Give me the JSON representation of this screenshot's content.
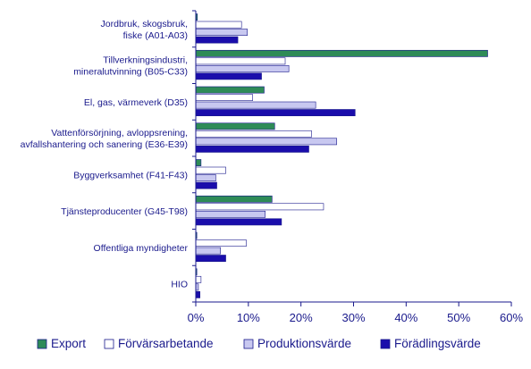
{
  "chart_data": {
    "type": "bar",
    "orientation": "horizontal",
    "categories": [
      [
        "Jordbruk, skogsbruk,",
        "fiske (A01-A03)"
      ],
      [
        "Tillverkningsindustri,",
        "mineralutvinning (B05-C33)"
      ],
      [
        "El, gas, värmeverk (D35)"
      ],
      [
        "Vattenförsörjning, avloppsrening,",
        "avfallshantering och sanering (E36-E39)"
      ],
      [
        "Byggverksamhet (F41-F43)"
      ],
      [
        "Tjänsteproducenter (G45-T98)"
      ],
      [
        "Offentliga myndigheter"
      ],
      [
        "HIO"
      ]
    ],
    "series": [
      {
        "name": "Export",
        "color": "#2e8b57",
        "values": [
          0.3,
          55.5,
          13.0,
          15.0,
          1.0,
          14.5,
          0.2,
          0.1
        ]
      },
      {
        "name": "Förvärsarbetande",
        "color": "#ffffff",
        "values": [
          8.7,
          17.0,
          10.8,
          22.0,
          5.7,
          24.3,
          9.6,
          1.0
        ]
      },
      {
        "name": "Produktionsvärde",
        "color": "#c8c8f0",
        "values": [
          9.8,
          17.7,
          22.8,
          26.8,
          3.8,
          13.2,
          4.7,
          0.5
        ]
      },
      {
        "name": "Förädlingsvärde",
        "color": "#1a0dab",
        "values": [
          8.0,
          12.5,
          30.3,
          21.5,
          4.0,
          16.3,
          5.7,
          0.8
        ]
      }
    ],
    "x_ticks": [
      "0%",
      "10%",
      "20%",
      "30%",
      "40%",
      "50%",
      "60%"
    ],
    "xlim": [
      0,
      60
    ],
    "grid": false,
    "legend_position": "bottom"
  }
}
